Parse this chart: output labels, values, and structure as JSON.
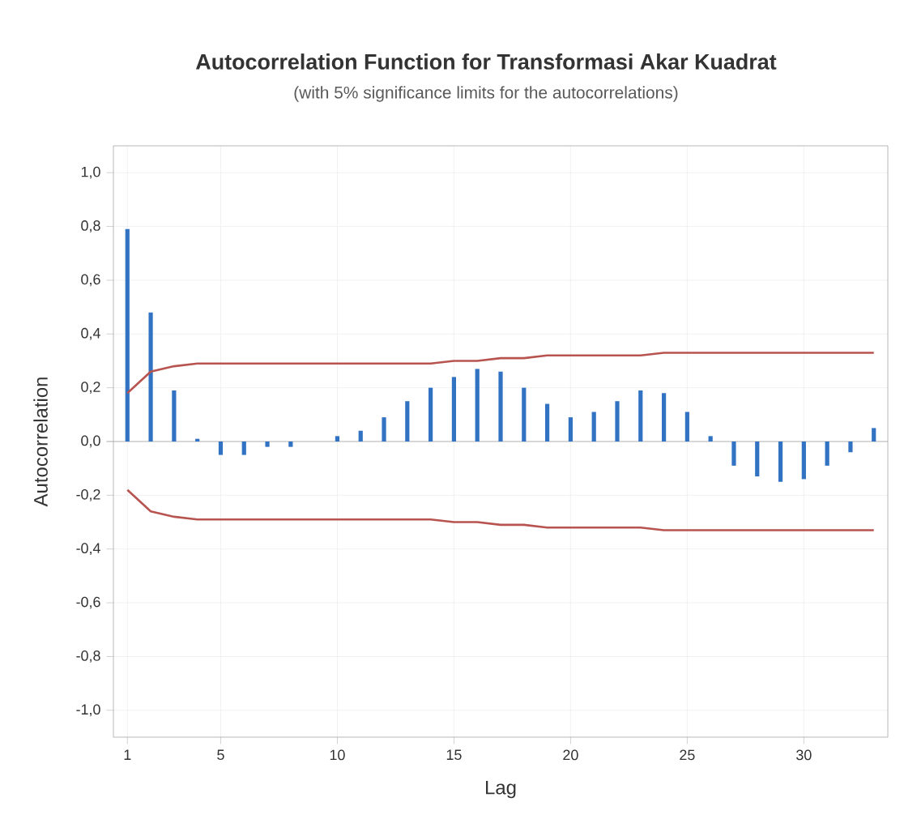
{
  "chart_data": {
    "type": "bar",
    "title": "Autocorrelation Function for Transformasi Akar Kuadrat",
    "subtitle": "(with 5% significance limits for the autocorrelations)",
    "xlabel": "Lag",
    "ylabel": "Autocorrelation",
    "x": [
      1,
      2,
      3,
      4,
      5,
      6,
      7,
      8,
      9,
      10,
      11,
      12,
      13,
      14,
      15,
      16,
      17,
      18,
      19,
      20,
      21,
      22,
      23,
      24,
      25,
      26,
      27,
      28,
      29,
      30,
      31,
      32,
      33
    ],
    "series": [
      {
        "color": "#3173c2",
        "values": [
          0.79,
          0.48,
          0.19,
          0.01,
          -0.05,
          -0.05,
          -0.02,
          -0.02,
          0.0,
          0.02,
          0.04,
          0.09,
          0.15,
          0.2,
          0.24,
          0.27,
          0.26,
          0.2,
          0.14,
          0.09,
          0.11,
          0.15,
          0.19,
          0.18,
          0.11,
          0.02,
          -0.09,
          -0.13,
          -0.15,
          -0.14,
          -0.09,
          -0.04,
          0.05
        ]
      },
      {
        "type": "line",
        "color": "#b85450",
        "values": [
          0.18,
          0.26,
          0.28,
          0.29,
          0.29,
          0.29,
          0.29,
          0.29,
          0.29,
          0.29,
          0.29,
          0.29,
          0.29,
          0.29,
          0.3,
          0.3,
          0.31,
          0.31,
          0.32,
          0.32,
          0.32,
          0.32,
          0.32,
          0.33,
          0.33,
          0.33,
          0.33,
          0.33,
          0.33,
          0.33,
          0.33,
          0.33,
          0.33
        ]
      },
      {
        "type": "line",
        "color": "#b85450",
        "values": [
          -0.18,
          -0.26,
          -0.28,
          -0.29,
          -0.29,
          -0.29,
          -0.29,
          -0.29,
          -0.29,
          -0.29,
          -0.29,
          -0.29,
          -0.29,
          -0.29,
          -0.3,
          -0.3,
          -0.31,
          -0.31,
          -0.32,
          -0.32,
          -0.32,
          -0.32,
          -0.32,
          -0.33,
          -0.33,
          -0.33,
          -0.33,
          -0.33,
          -0.33,
          -0.33,
          -0.33,
          -0.33,
          -0.33
        ]
      }
    ],
    "xlim": [
      0.4,
      33.6
    ],
    "xticks": [
      1,
      5,
      10,
      15,
      20,
      25,
      30
    ],
    "ylim": [
      -1.1,
      1.1
    ],
    "yticks": [
      {
        "value": -1.0,
        "label": "-1,0"
      },
      {
        "value": -0.8,
        "label": "-0,8"
      },
      {
        "value": -0.6,
        "label": "-0,6"
      },
      {
        "value": -0.4,
        "label": "-0,4"
      },
      {
        "value": -0.2,
        "label": "-0,2"
      },
      {
        "value": 0.0,
        "label": "0,0"
      },
      {
        "value": 0.2,
        "label": "0,2"
      },
      {
        "value": 0.4,
        "label": "0,4"
      },
      {
        "value": 0.6,
        "label": "0,6"
      },
      {
        "value": 0.8,
        "label": "0,8"
      },
      {
        "value": 1.0,
        "label": "1,0"
      }
    ],
    "grid": true
  }
}
